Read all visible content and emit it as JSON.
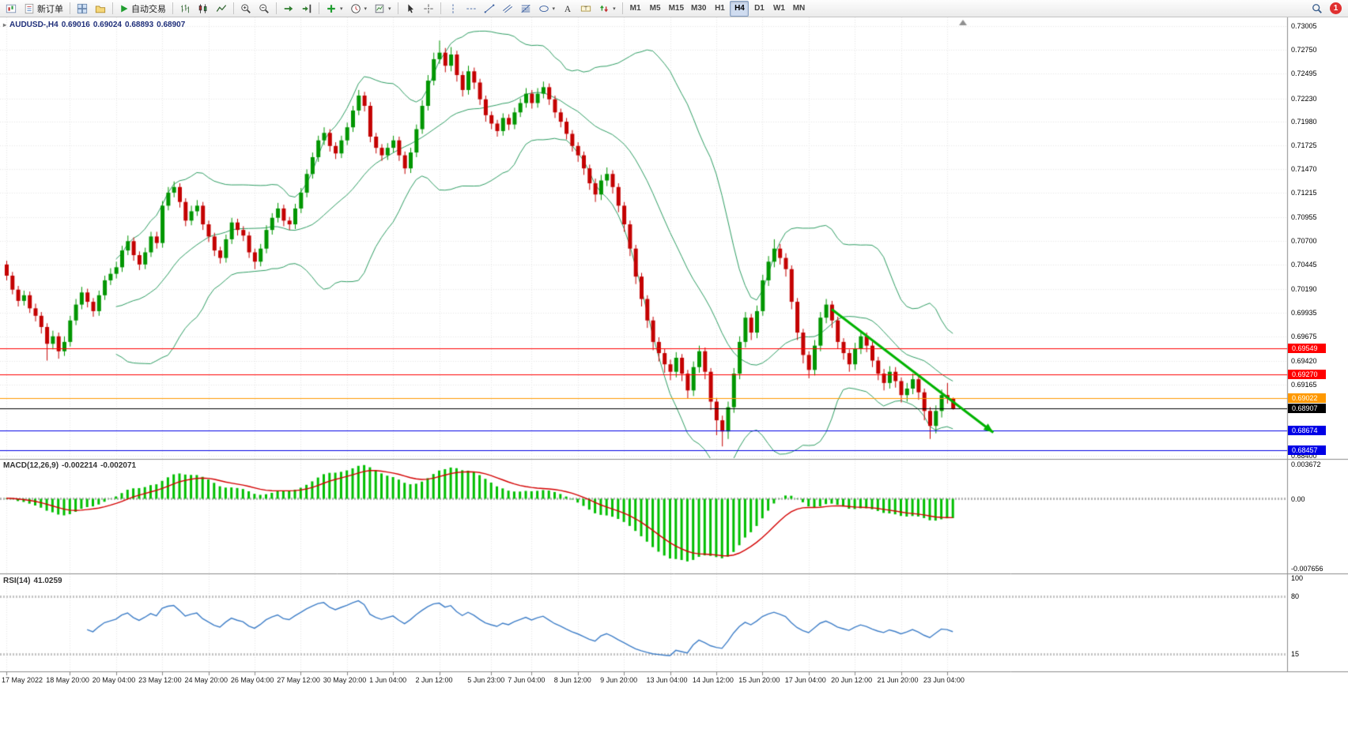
{
  "toolbar": {
    "new_order_label": "新订单",
    "autotrading_label": "自动交易",
    "timeframes": [
      "M1",
      "M5",
      "M15",
      "M30",
      "H1",
      "H4",
      "D1",
      "W1",
      "MN"
    ],
    "active_timeframe": "H4",
    "notification_count": "1",
    "icon_buttons": [
      "chart-window",
      "new-order",
      "charts-grid",
      "profiles",
      "autotrading",
      "bar-chart",
      "candlestick-chart",
      "line-chart",
      "zoom-in",
      "zoom-out",
      "autoscroll",
      "chart-shift",
      "indicators",
      "periods",
      "templates",
      "cursor",
      "crosshair",
      "vertical-line",
      "horizontal-line",
      "trendline",
      "channel",
      "fibonacci",
      "shapes",
      "text",
      "label",
      "arrows",
      "search",
      "notification"
    ]
  },
  "price_chart": {
    "symbol_label": "AUDUSD-,H4",
    "open": "0.69016",
    "high": "0.69024",
    "low": "0.68893",
    "close": "0.68907",
    "axis_ticks": [
      "0.73005",
      "0.72750",
      "0.72495",
      "0.72230",
      "0.71980",
      "0.71725",
      "0.71470",
      "0.71215",
      "0.70955",
      "0.70700",
      "0.70445",
      "0.70190",
      "0.69935",
      "0.69675",
      "0.69420",
      "0.69165",
      "0.68910",
      "0.68400"
    ],
    "h_lines": [
      {
        "value": 0.69549,
        "label": "0.69549",
        "color": "#ff0000"
      },
      {
        "value": 0.6927,
        "label": "0.69270",
        "color": "#ff0000"
      },
      {
        "value": 0.69022,
        "label": "0.69022",
        "color": "#ff9900"
      },
      {
        "value": 0.68674,
        "label": "0.68674",
        "color": "#0000e6"
      },
      {
        "value": 0.68457,
        "label": "0.68457",
        "color": "#0000e6"
      }
    ],
    "current_price": {
      "value": 0.68907,
      "label": "0.68907",
      "color": "#000000"
    },
    "trendline": {
      "from_bar": 143,
      "from_price": 0.6997,
      "to_bar": 171,
      "to_price": 0.6865,
      "color": "#00b300"
    }
  },
  "chart_data": {
    "type": "candlestick",
    "symbol": "AUDUSD",
    "timeframe": "H4",
    "price_range": [
      0.684,
      0.73005
    ],
    "overlays": {
      "bollinger": {
        "period": 20,
        "deviation": 2
      }
    },
    "candles": [
      [
        0.7045,
        0.7049,
        0.7028,
        0.7033
      ],
      [
        0.7033,
        0.7037,
        0.7013,
        0.7018
      ],
      [
        0.7018,
        0.7022,
        0.7,
        0.7006
      ],
      [
        0.7006,
        0.7017,
        0.7001,
        0.7012
      ],
      [
        0.7012,
        0.7016,
        0.6993,
        0.6998
      ],
      [
        0.6998,
        0.7003,
        0.6984,
        0.699
      ],
      [
        0.699,
        0.6994,
        0.6971,
        0.6978
      ],
      [
        0.6978,
        0.6982,
        0.6942,
        0.696
      ],
      [
        0.696,
        0.6974,
        0.6954,
        0.6968
      ],
      [
        0.6968,
        0.6972,
        0.6944,
        0.6952
      ],
      [
        0.6952,
        0.6968,
        0.6947,
        0.6962
      ],
      [
        0.6962,
        0.699,
        0.6957,
        0.6985
      ],
      [
        0.6985,
        0.7008,
        0.698,
        0.7002
      ],
      [
        0.7002,
        0.7021,
        0.6997,
        0.7015
      ],
      [
        0.7015,
        0.7019,
        0.6999,
        0.7005
      ],
      [
        0.7005,
        0.7009,
        0.6989,
        0.6995
      ],
      [
        0.6995,
        0.7017,
        0.699,
        0.7012
      ],
      [
        0.7012,
        0.7033,
        0.7007,
        0.7028
      ],
      [
        0.7028,
        0.7041,
        0.7023,
        0.7035
      ],
      [
        0.7035,
        0.7048,
        0.703,
        0.7042
      ],
      [
        0.7042,
        0.7065,
        0.7037,
        0.706
      ],
      [
        0.706,
        0.7076,
        0.7055,
        0.707
      ],
      [
        0.707,
        0.7074,
        0.7049,
        0.7055
      ],
      [
        0.7055,
        0.7059,
        0.7039,
        0.7045
      ],
      [
        0.7045,
        0.7063,
        0.704,
        0.7058
      ],
      [
        0.7058,
        0.708,
        0.7053,
        0.7075
      ],
      [
        0.7075,
        0.708,
        0.7062,
        0.7068
      ],
      [
        0.7068,
        0.7113,
        0.7063,
        0.7108
      ],
      [
        0.7108,
        0.7128,
        0.7103,
        0.7122
      ],
      [
        0.7122,
        0.7134,
        0.7117,
        0.7128
      ],
      [
        0.7128,
        0.7132,
        0.7106,
        0.7112
      ],
      [
        0.7112,
        0.7116,
        0.7086,
        0.7092
      ],
      [
        0.7092,
        0.7108,
        0.7087,
        0.7102
      ],
      [
        0.7102,
        0.7114,
        0.7097,
        0.7108
      ],
      [
        0.7108,
        0.7112,
        0.7082,
        0.7088
      ],
      [
        0.7088,
        0.7092,
        0.7069,
        0.7075
      ],
      [
        0.7075,
        0.7079,
        0.7054,
        0.706
      ],
      [
        0.706,
        0.7064,
        0.7046,
        0.7052
      ],
      [
        0.7052,
        0.7077,
        0.7047,
        0.7072
      ],
      [
        0.7072,
        0.7095,
        0.7067,
        0.709
      ],
      [
        0.709,
        0.7094,
        0.7076,
        0.7082
      ],
      [
        0.7082,
        0.7086,
        0.707,
        0.7076
      ],
      [
        0.7076,
        0.708,
        0.7052,
        0.7058
      ],
      [
        0.7058,
        0.7062,
        0.704,
        0.7048
      ],
      [
        0.7048,
        0.7067,
        0.7043,
        0.7062
      ],
      [
        0.7062,
        0.7087,
        0.7057,
        0.7082
      ],
      [
        0.7082,
        0.71,
        0.7077,
        0.7095
      ],
      [
        0.7095,
        0.7111,
        0.709,
        0.7105
      ],
      [
        0.7105,
        0.7109,
        0.7086,
        0.7092
      ],
      [
        0.7092,
        0.7096,
        0.7082,
        0.7088
      ],
      [
        0.7088,
        0.711,
        0.7083,
        0.7105
      ],
      [
        0.7105,
        0.7127,
        0.71,
        0.7122
      ],
      [
        0.7122,
        0.7147,
        0.7117,
        0.7142
      ],
      [
        0.7142,
        0.7165,
        0.7137,
        0.716
      ],
      [
        0.716,
        0.7183,
        0.7155,
        0.7178
      ],
      [
        0.7178,
        0.7192,
        0.7173,
        0.7186
      ],
      [
        0.7186,
        0.719,
        0.7166,
        0.7172
      ],
      [
        0.7172,
        0.7176,
        0.7158,
        0.7164
      ],
      [
        0.7164,
        0.7183,
        0.7159,
        0.7178
      ],
      [
        0.7178,
        0.7197,
        0.7173,
        0.7192
      ],
      [
        0.7192,
        0.7215,
        0.7187,
        0.721
      ],
      [
        0.721,
        0.7232,
        0.7205,
        0.7226
      ],
      [
        0.7226,
        0.723,
        0.7209,
        0.7215
      ],
      [
        0.7215,
        0.7219,
        0.7176,
        0.7182
      ],
      [
        0.7182,
        0.7186,
        0.7164,
        0.717
      ],
      [
        0.717,
        0.7174,
        0.7156,
        0.7162
      ],
      [
        0.7162,
        0.7175,
        0.7157,
        0.717
      ],
      [
        0.717,
        0.7183,
        0.7165,
        0.7178
      ],
      [
        0.7178,
        0.7182,
        0.7156,
        0.7162
      ],
      [
        0.7162,
        0.7166,
        0.7142,
        0.7148
      ],
      [
        0.7148,
        0.717,
        0.7143,
        0.7165
      ],
      [
        0.7165,
        0.7195,
        0.716,
        0.719
      ],
      [
        0.719,
        0.7221,
        0.7185,
        0.7215
      ],
      [
        0.7215,
        0.7248,
        0.721,
        0.7242
      ],
      [
        0.7242,
        0.7272,
        0.7237,
        0.7265
      ],
      [
        0.7265,
        0.7285,
        0.726,
        0.7272
      ],
      [
        0.7272,
        0.7277,
        0.7251,
        0.7258
      ],
      [
        0.7258,
        0.7278,
        0.7252,
        0.727
      ],
      [
        0.727,
        0.7274,
        0.7241,
        0.7248
      ],
      [
        0.7248,
        0.7252,
        0.7225,
        0.7232
      ],
      [
        0.7232,
        0.7258,
        0.7227,
        0.7252
      ],
      [
        0.7252,
        0.7256,
        0.7233,
        0.724
      ],
      [
        0.724,
        0.7244,
        0.7216,
        0.7222
      ],
      [
        0.7222,
        0.7226,
        0.7198,
        0.7205
      ],
      [
        0.7205,
        0.7209,
        0.719,
        0.7196
      ],
      [
        0.7196,
        0.72,
        0.7182,
        0.7188
      ],
      [
        0.7188,
        0.7207,
        0.7183,
        0.7202
      ],
      [
        0.7202,
        0.7206,
        0.7189,
        0.7195
      ],
      [
        0.7195,
        0.7213,
        0.719,
        0.7208
      ],
      [
        0.7208,
        0.7223,
        0.7203,
        0.7218
      ],
      [
        0.7218,
        0.7234,
        0.7213,
        0.7228
      ],
      [
        0.7228,
        0.7232,
        0.7212,
        0.7218
      ],
      [
        0.7218,
        0.7234,
        0.7213,
        0.7228
      ],
      [
        0.7228,
        0.7241,
        0.7223,
        0.7235
      ],
      [
        0.7235,
        0.7239,
        0.7216,
        0.7222
      ],
      [
        0.7222,
        0.7226,
        0.7202,
        0.7208
      ],
      [
        0.7208,
        0.7212,
        0.7192,
        0.7198
      ],
      [
        0.7198,
        0.7202,
        0.7179,
        0.7185
      ],
      [
        0.7185,
        0.7189,
        0.7166,
        0.7172
      ],
      [
        0.7172,
        0.7176,
        0.7155,
        0.7162
      ],
      [
        0.7162,
        0.7166,
        0.7141,
        0.7148
      ],
      [
        0.7148,
        0.7152,
        0.7125,
        0.7132
      ],
      [
        0.7132,
        0.7137,
        0.7112,
        0.712
      ],
      [
        0.712,
        0.7141,
        0.7114,
        0.7135
      ],
      [
        0.7135,
        0.7149,
        0.7129,
        0.7142
      ],
      [
        0.7142,
        0.7146,
        0.7121,
        0.7128
      ],
      [
        0.7128,
        0.7132,
        0.7101,
        0.7108
      ],
      [
        0.7108,
        0.7112,
        0.708,
        0.7088
      ],
      [
        0.7088,
        0.7092,
        0.7054,
        0.7062
      ],
      [
        0.7062,
        0.7066,
        0.7024,
        0.7032
      ],
      [
        0.7032,
        0.7036,
        0.7,
        0.7008
      ],
      [
        0.7008,
        0.7012,
        0.6977,
        0.6985
      ],
      [
        0.6985,
        0.6989,
        0.6953,
        0.6962
      ],
      [
        0.6962,
        0.6967,
        0.6941,
        0.695
      ],
      [
        0.695,
        0.6955,
        0.6929,
        0.6938
      ],
      [
        0.6938,
        0.6943,
        0.6921,
        0.693
      ],
      [
        0.693,
        0.6951,
        0.6924,
        0.6945
      ],
      [
        0.6945,
        0.6949,
        0.692,
        0.6928
      ],
      [
        0.6928,
        0.6932,
        0.6901,
        0.691
      ],
      [
        0.691,
        0.6941,
        0.6904,
        0.6935
      ],
      [
        0.6935,
        0.6958,
        0.6929,
        0.6952
      ],
      [
        0.6952,
        0.6956,
        0.6922,
        0.693
      ],
      [
        0.693,
        0.6934,
        0.6889,
        0.6898
      ],
      [
        0.6898,
        0.6902,
        0.6862,
        0.6878
      ],
      [
        0.6878,
        0.6883,
        0.685,
        0.6866
      ],
      [
        0.6866,
        0.6898,
        0.6858,
        0.6892
      ],
      [
        0.6892,
        0.6934,
        0.6886,
        0.6928
      ],
      [
        0.6928,
        0.6968,
        0.6922,
        0.6962
      ],
      [
        0.6962,
        0.6994,
        0.6956,
        0.6988
      ],
      [
        0.6988,
        0.6992,
        0.6964,
        0.6972
      ],
      [
        0.6972,
        0.7001,
        0.6966,
        0.6995
      ],
      [
        0.6995,
        0.7034,
        0.699,
        0.7028
      ],
      [
        0.7028,
        0.7054,
        0.7022,
        0.7048
      ],
      [
        0.7048,
        0.7072,
        0.7042,
        0.7062
      ],
      [
        0.7062,
        0.7067,
        0.7045,
        0.7052
      ],
      [
        0.7052,
        0.7057,
        0.7032,
        0.704
      ],
      [
        0.704,
        0.7044,
        0.6997,
        0.7005
      ],
      [
        0.7005,
        0.7009,
        0.6964,
        0.6972
      ],
      [
        0.6972,
        0.6976,
        0.6939,
        0.6948
      ],
      [
        0.6948,
        0.6952,
        0.6923,
        0.6932
      ],
      [
        0.6932,
        0.6964,
        0.6926,
        0.6958
      ],
      [
        0.6958,
        0.6994,
        0.6952,
        0.6988
      ],
      [
        0.6988,
        0.7008,
        0.6982,
        0.7002
      ],
      [
        0.7002,
        0.7006,
        0.6977,
        0.6985
      ],
      [
        0.6985,
        0.6989,
        0.6955,
        0.6962
      ],
      [
        0.6962,
        0.6966,
        0.6943,
        0.695
      ],
      [
        0.695,
        0.6954,
        0.693,
        0.6938
      ],
      [
        0.6938,
        0.6961,
        0.6932,
        0.6955
      ],
      [
        0.6955,
        0.6974,
        0.6949,
        0.6968
      ],
      [
        0.6968,
        0.6972,
        0.6951,
        0.6958
      ],
      [
        0.6958,
        0.6962,
        0.6935,
        0.6942
      ],
      [
        0.6942,
        0.6946,
        0.6921,
        0.6928
      ],
      [
        0.6928,
        0.6933,
        0.691,
        0.6918
      ],
      [
        0.6918,
        0.6936,
        0.6912,
        0.693
      ],
      [
        0.693,
        0.6935,
        0.6913,
        0.692
      ],
      [
        0.692,
        0.6924,
        0.6897,
        0.6905
      ],
      [
        0.6905,
        0.6918,
        0.6898,
        0.6912
      ],
      [
        0.6912,
        0.6928,
        0.6906,
        0.6922
      ],
      [
        0.6922,
        0.6926,
        0.69,
        0.6908
      ],
      [
        0.6908,
        0.6912,
        0.6878,
        0.6888
      ],
      [
        0.6888,
        0.6892,
        0.6858,
        0.6872
      ],
      [
        0.6872,
        0.6894,
        0.6864,
        0.6888
      ],
      [
        0.6888,
        0.6911,
        0.6881,
        0.6905
      ],
      [
        0.6905,
        0.6918,
        0.6896,
        0.6902
      ],
      [
        0.69016,
        0.69024,
        0.68893,
        0.68907
      ]
    ],
    "time_labels": [
      {
        "bar": 0,
        "label": "17 May 2022"
      },
      {
        "bar": 11,
        "label": "18 May 20:00"
      },
      {
        "bar": 19,
        "label": "20 May 04:00"
      },
      {
        "bar": 27,
        "label": "23 May 12:00"
      },
      {
        "bar": 35,
        "label": "24 May 20:00"
      },
      {
        "bar": 43,
        "label": "26 May 04:00"
      },
      {
        "bar": 51,
        "label": "27 May 12:00"
      },
      {
        "bar": 59,
        "label": "30 May 20:00"
      },
      {
        "bar": 67,
        "label": "1 Jun 04:00"
      },
      {
        "bar": 75,
        "label": "2 Jun 12:00"
      },
      {
        "bar": 84,
        "label": "5 Jun 23:00"
      },
      {
        "bar": 91,
        "label": "7 Jun 04:00"
      },
      {
        "bar": 99,
        "label": "8 Jun 12:00"
      },
      {
        "bar": 107,
        "label": "9 Jun 20:00"
      },
      {
        "bar": 115,
        "label": "13 Jun 04:00"
      },
      {
        "bar": 123,
        "label": "14 Jun 12:00"
      },
      {
        "bar": 131,
        "label": "15 Jun 20:00"
      },
      {
        "bar": 139,
        "label": "17 Jun 04:00"
      },
      {
        "bar": 147,
        "label": "20 Jun 12:00"
      },
      {
        "bar": 155,
        "label": "21 Jun 20:00"
      },
      {
        "bar": 163,
        "label": "23 Jun 04:00"
      }
    ]
  },
  "macd": {
    "label": "MACD(12,26,9)",
    "value_main": "-0.002214",
    "value_signal": "-0.002071",
    "axis_max": "0.003672",
    "axis_zero": "0.00",
    "axis_min": "-0.007656",
    "params": {
      "fast": 12,
      "slow": 26,
      "signal": 9
    }
  },
  "rsi": {
    "label": "RSI(14)",
    "value": "41.0259",
    "period": 14,
    "axis_ticks": [
      "100",
      "80",
      "15"
    ],
    "levels": [
      80,
      15
    ]
  },
  "colors": {
    "bull": "#009600",
    "bear": "#c40000",
    "band": "#2f9e64",
    "macd_hist": "#00bf00",
    "macd_signal": "#d40000",
    "rsi_line": "#3e7ec8",
    "grid": "#e7e7e7",
    "separator": "#8c8c8c"
  }
}
